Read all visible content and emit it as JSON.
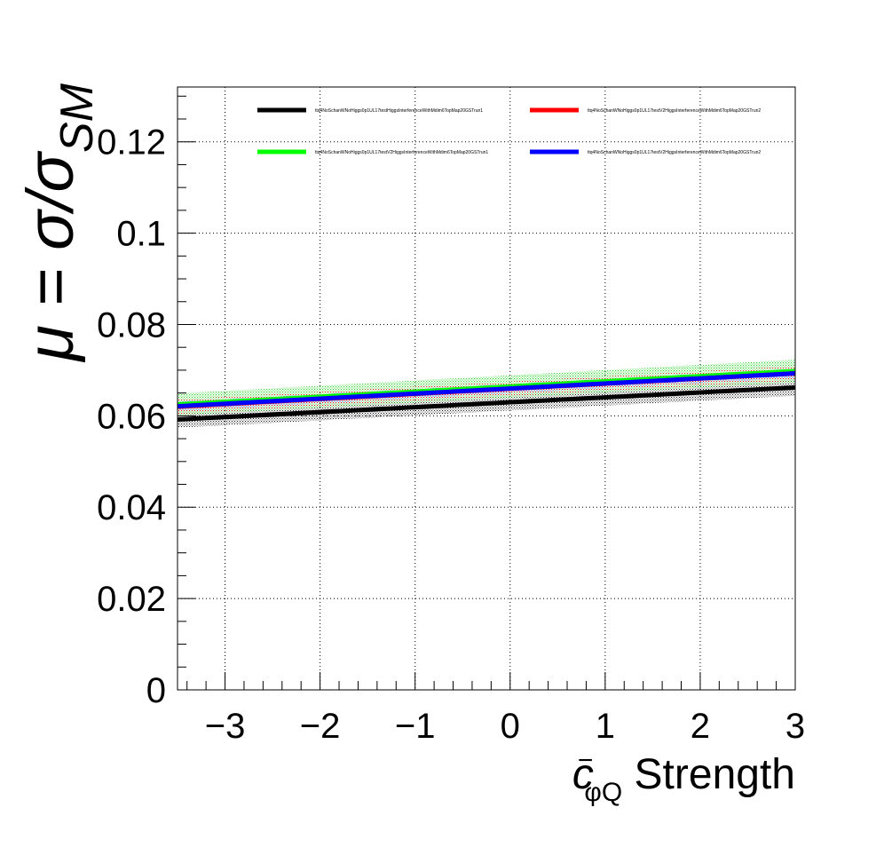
{
  "chart_data": {
    "type": "line",
    "xlim": [
      -3.5,
      3
    ],
    "ylim": [
      0,
      0.132
    ],
    "grid": true,
    "legend_position": "top",
    "xlabel": {
      "main": "c",
      "superscript": "−",
      "subscript": "φQ",
      "suffix": " Strength"
    },
    "ylabel": {
      "prefix": "μ = σ/σ",
      "subscript": "SM"
    },
    "x_ticks": [
      {
        "value": -3,
        "label": "−3"
      },
      {
        "value": -2,
        "label": "−2"
      },
      {
        "value": -1,
        "label": "−1"
      },
      {
        "value": 0,
        "label": "0"
      },
      {
        "value": 1,
        "label": "1"
      },
      {
        "value": 2,
        "label": "2"
      },
      {
        "value": 3,
        "label": "3"
      }
    ],
    "y_ticks": [
      {
        "value": 0,
        "label": "0"
      },
      {
        "value": 0.02,
        "label": "0.02"
      },
      {
        "value": 0.04,
        "label": "0.04"
      },
      {
        "value": 0.06,
        "label": "0.06"
      },
      {
        "value": 0.08,
        "label": "0.08"
      },
      {
        "value": 0.1,
        "label": "0.1"
      },
      {
        "value": 0.12,
        "label": "0.12"
      }
    ],
    "series": [
      {
        "name": "ttq4NoSchanWNoHiggs0p1UL17testHiggsInterferenceWithMdim6TopMap20GSTrun1",
        "color": "#000000",
        "x": [
          -3.5,
          3
        ],
        "y": [
          0.0592,
          0.0662
        ],
        "band": [
          0.0018,
          0.0018
        ],
        "band_color": "#000000"
      },
      {
        "name": "ttq4NoSchanWNoHiggs0p1UL17testV2HiggsInterferenceWithMdim6TopMap20GSTrun2",
        "color": "#ff0000",
        "x": [
          -3.5,
          3
        ],
        "y": [
          0.062,
          0.0693
        ],
        "band": [
          0.0016,
          0.0016
        ],
        "band_color": "#ff0000"
      },
      {
        "name": "ttq4NoSchanWNoHiggs0p1UL17testV2HiggsInterferenceWithMdim6TopMap20GSTrun1",
        "color": "#00ff00",
        "x": [
          -3.5,
          3
        ],
        "y": [
          0.0625,
          0.0698
        ],
        "band": [
          0.0024,
          0.0025
        ],
        "band_color": "#00cc00"
      },
      {
        "name": "ttq4NoSchanWNoHiggs0p1UL17testV2HiggsInterferenceWithMdim6TopMap20GSTrun2",
        "color": "#0000ff",
        "x": [
          -3.5,
          3
        ],
        "y": [
          0.0621,
          0.0693
        ],
        "band": [
          0.001,
          0.001
        ],
        "band_color": "#0000ff"
      }
    ],
    "legend_order": [
      0,
      1,
      2,
      3
    ]
  }
}
